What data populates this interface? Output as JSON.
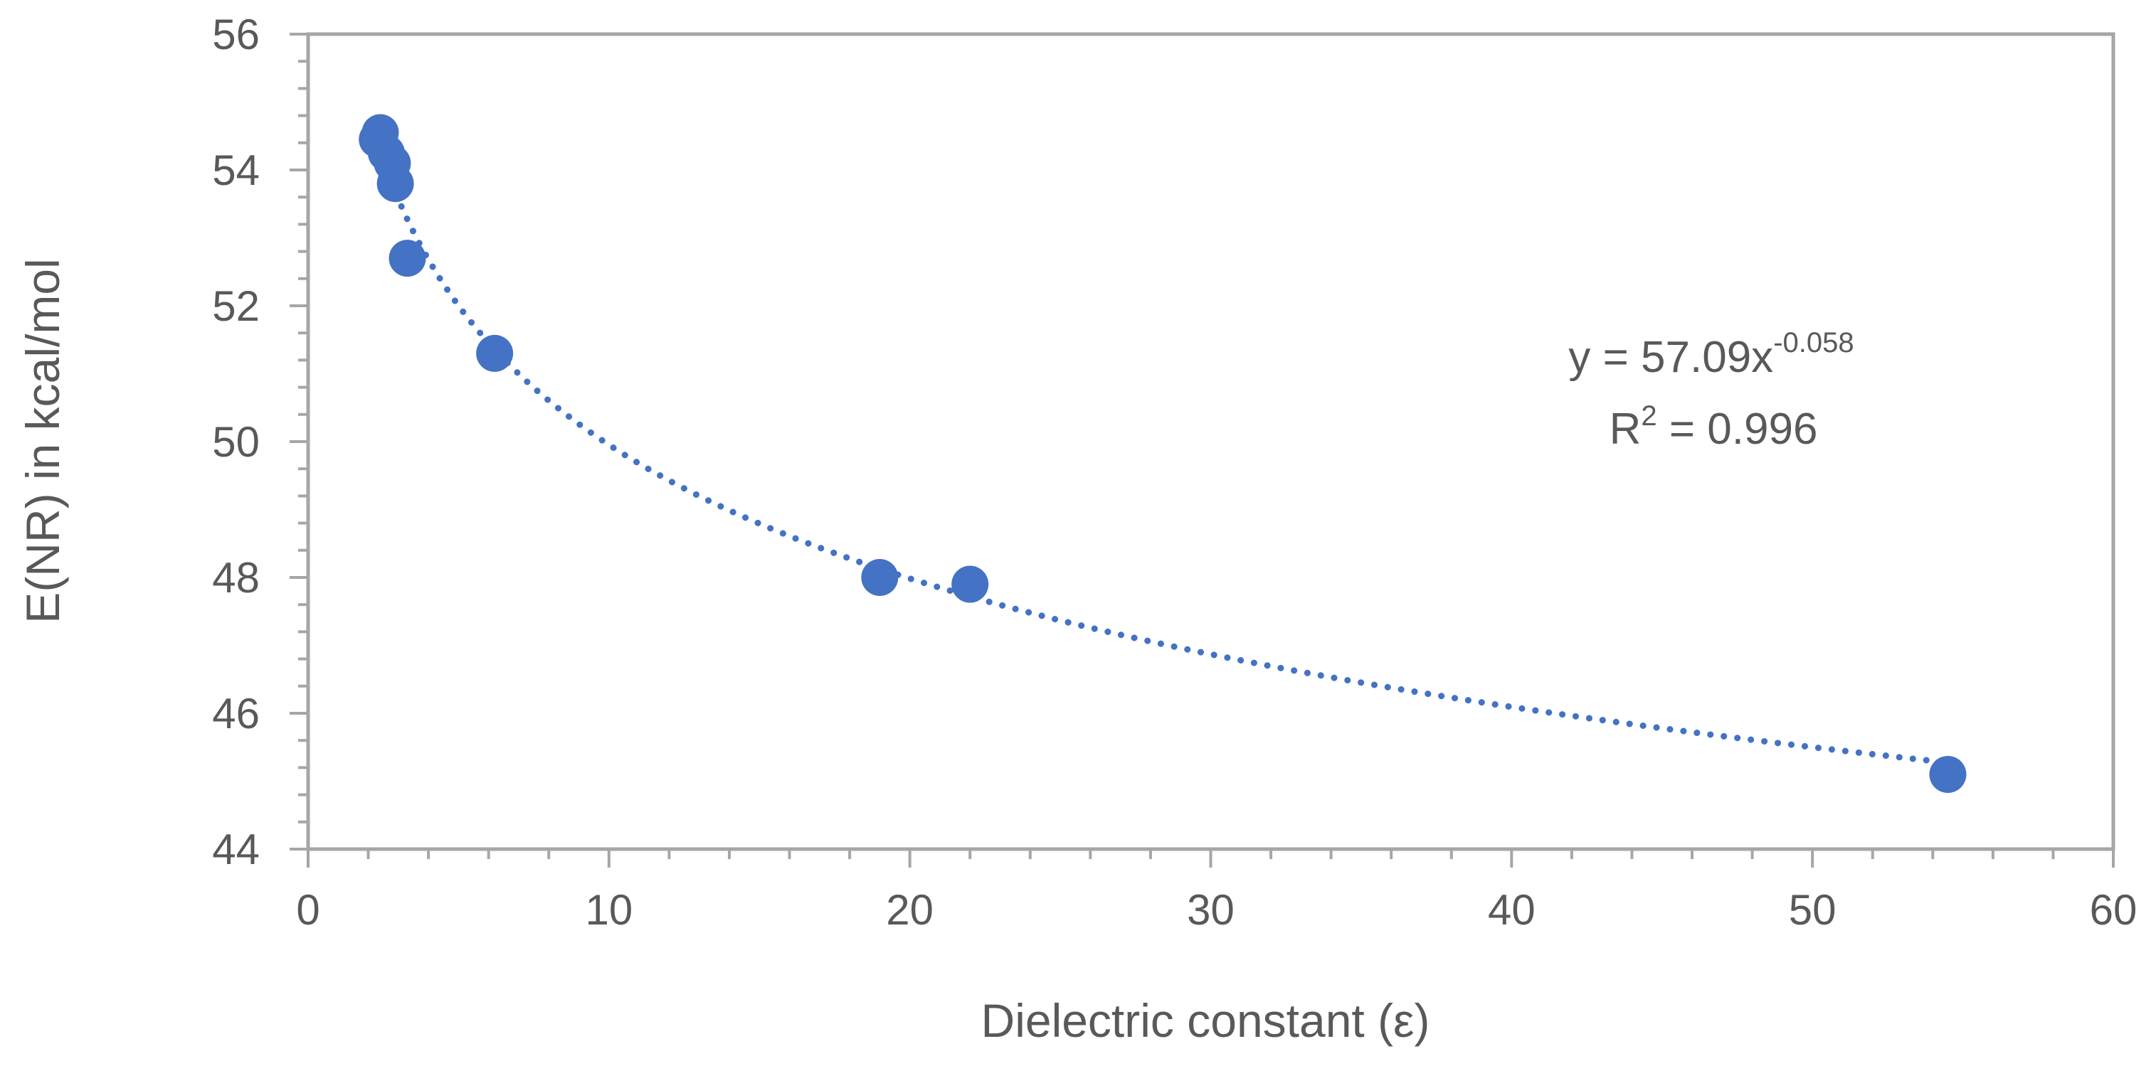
{
  "chart_data": {
    "type": "scatter",
    "title": "",
    "xlabel": "Dielectric constant (ε)",
    "ylabel": "E(NR) in kcal/mol",
    "xlim": [
      0,
      60
    ],
    "ylim": [
      44,
      56
    ],
    "x_major_step": 10,
    "x_minor_step": 2,
    "y_major_step": 2,
    "y_minor_step": 0.4,
    "grid": false,
    "legend": "none",
    "x_ticks": [
      "0",
      "10",
      "20",
      "30",
      "40",
      "50",
      "60"
    ],
    "y_ticks": [
      "44",
      "46",
      "48",
      "50",
      "52",
      "54",
      "56"
    ],
    "series": [
      {
        "name": "E(NR)",
        "x": [
          2.3,
          2.4,
          2.6,
          2.8,
          2.9,
          3.3,
          6.2,
          19.0,
          22.0,
          54.5
        ],
        "y": [
          54.45,
          54.55,
          54.25,
          54.1,
          53.8,
          52.7,
          51.3,
          48.0,
          47.9,
          45.1
        ]
      }
    ],
    "trendline": {
      "type": "power",
      "coefficient": 57.09,
      "exponent": -0.058,
      "x_start": 2.3,
      "x_end": 54.5,
      "style": "dotted"
    },
    "annotations": {
      "equation_prefix": "y = 57.09x",
      "equation_exponent": "-0.058",
      "r2_prefix": "R",
      "r2_superscript": "2",
      "r2_suffix": " = 0.996"
    },
    "colors": {
      "marker": "#4472C4",
      "trendline": "#4472C4",
      "axis": "#A6A6A6",
      "text": "#595959"
    }
  }
}
